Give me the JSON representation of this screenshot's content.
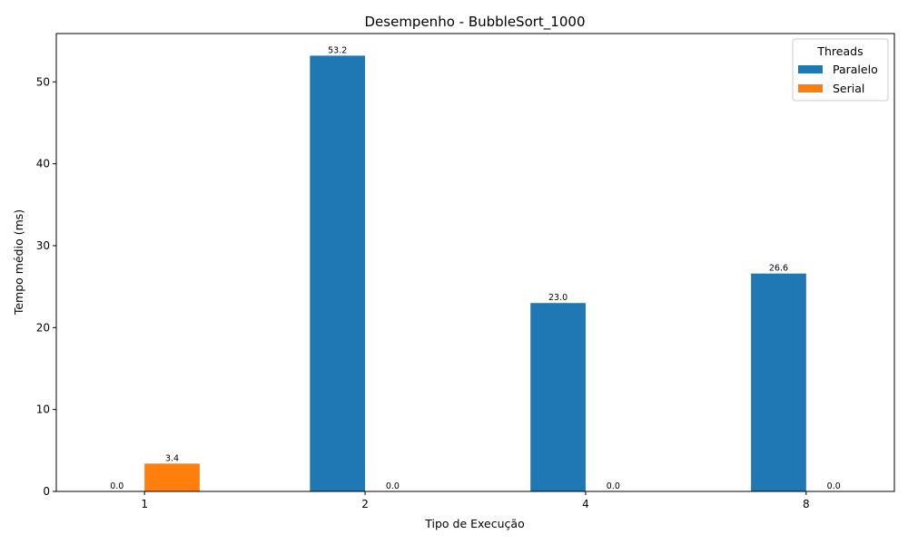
{
  "chart_data": {
    "type": "bar",
    "title": "Desempenho - BubbleSort_1000",
    "xlabel": "Tipo de Execução",
    "ylabel": "Tempo médio (ms)",
    "categories": [
      "1",
      "2",
      "4",
      "8"
    ],
    "series": [
      {
        "name": "Paralelo",
        "color": "#1f77b4",
        "values": [
          0.0,
          53.2,
          23.0,
          26.6
        ],
        "labels": [
          "0.0",
          "53.2",
          "23.0",
          "26.6"
        ]
      },
      {
        "name": "Serial",
        "color": "#ff7f0e",
        "values": [
          3.4,
          0.0,
          0.0,
          0.0
        ],
        "labels": [
          "3.4",
          "0.0",
          "0.0",
          "0.0"
        ]
      }
    ],
    "ylim": [
      0,
      55.9
    ],
    "yticks": [
      0,
      10,
      20,
      30,
      40,
      50
    ],
    "grid": false,
    "legend": {
      "title": "Threads",
      "position": "top-right"
    }
  }
}
